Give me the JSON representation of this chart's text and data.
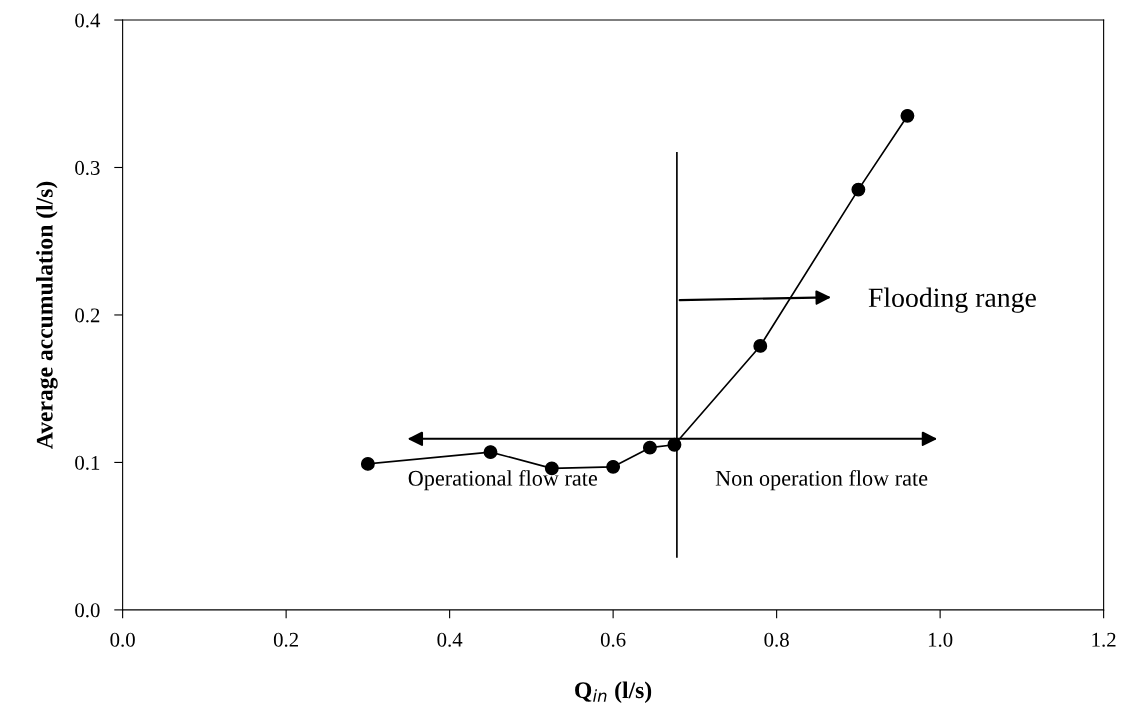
{
  "chart_data": {
    "type": "line",
    "xlabel": "Q$_{in}$ (l/s)",
    "ylabel": "Average accumulation (l/s)",
    "x": [
      0.3,
      0.45,
      0.525,
      0.6,
      0.645,
      0.675,
      0.78,
      0.9,
      0.96
    ],
    "series": [
      {
        "color": "#000000",
        "values": [
          0.099,
          0.107,
          0.096,
          0.097,
          0.11,
          0.112,
          0.179,
          0.285,
          0.335
        ]
      }
    ],
    "marker": "circle",
    "line_style": "solid",
    "grid": false,
    "legend": false,
    "xlim": [
      0.0,
      1.2
    ],
    "xticks": [
      {
        "value": 0.0,
        "label": "0.0"
      },
      {
        "value": 0.2,
        "label": "0.2"
      },
      {
        "value": 0.4,
        "label": "0.4"
      },
      {
        "value": 0.6,
        "label": "0.6"
      },
      {
        "value": 0.8,
        "label": "0.8"
      },
      {
        "value": 1.0,
        "label": "1.0"
      },
      {
        "value": 1.2,
        "label": "1.2"
      }
    ],
    "ylim": [
      0.0,
      0.4
    ],
    "yticks": [
      {
        "value": 0.0,
        "label": "0.0"
      },
      {
        "value": 0.1,
        "label": "0.1"
      },
      {
        "value": 0.2,
        "label": "0.2"
      },
      {
        "value": 0.3,
        "label": "0.3"
      },
      {
        "value": 0.4,
        "label": "0.4"
      }
    ],
    "ref_lines": [
      {
        "axis": "x",
        "value": 0.678,
        "color": "#000000",
        "line_style": "solid"
      }
    ],
    "annotations": [
      "Operational flow rate",
      "Non operation flow rate",
      "Flooding range"
    ]
  }
}
